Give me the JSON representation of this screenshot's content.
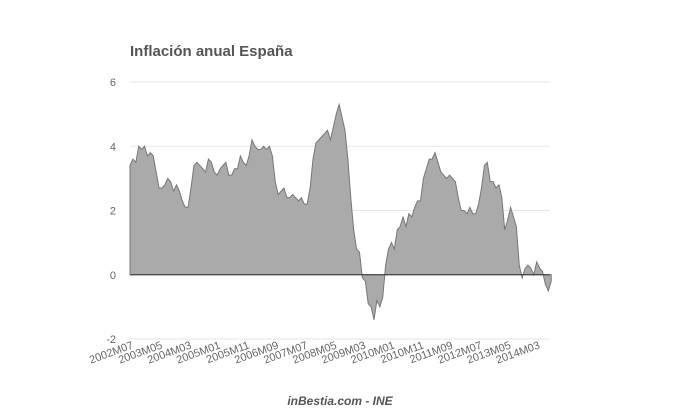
{
  "chart_data": {
    "type": "area",
    "title": "Inflación anual España",
    "source": "inBestia.com - INE",
    "xlabel": "",
    "ylabel": "",
    "ylim": [
      -2,
      6
    ],
    "yticks": [
      "6",
      "4",
      "2",
      "0",
      "-2"
    ],
    "grid": true,
    "legend": "none",
    "x_tick_labels": [
      "2002M07",
      "2003M05",
      "2004M03",
      "2005M01",
      "2005M11",
      "2006M09",
      "2007M07",
      "2008M05",
      "2009M03",
      "2010M01",
      "2010M11",
      "2011M09",
      "2012M07",
      "2013M05",
      "2014M03"
    ],
    "x_start": "2002M07",
    "x": [
      "2002M07",
      "2002M08",
      "2002M09",
      "2002M10",
      "2002M11",
      "2002M12",
      "2003M01",
      "2003M02",
      "2003M03",
      "2003M04",
      "2003M05",
      "2003M06",
      "2003M07",
      "2003M08",
      "2003M09",
      "2003M10",
      "2003M11",
      "2003M12",
      "2004M01",
      "2004M02",
      "2004M03",
      "2004M04",
      "2004M05",
      "2004M06",
      "2004M07",
      "2004M08",
      "2004M09",
      "2004M10",
      "2004M11",
      "2004M12",
      "2005M01",
      "2005M02",
      "2005M03",
      "2005M04",
      "2005M05",
      "2005M06",
      "2005M07",
      "2005M08",
      "2005M09",
      "2005M10",
      "2005M11",
      "2005M12",
      "2006M01",
      "2006M02",
      "2006M03",
      "2006M04",
      "2006M05",
      "2006M06",
      "2006M07",
      "2006M08",
      "2006M09",
      "2006M10",
      "2006M11",
      "2006M12",
      "2007M01",
      "2007M02",
      "2007M03",
      "2007M04",
      "2007M05",
      "2007M06",
      "2007M07",
      "2007M08",
      "2007M09",
      "2007M10",
      "2007M11",
      "2007M12",
      "2008M01",
      "2008M02",
      "2008M03",
      "2008M04",
      "2008M05",
      "2008M06",
      "2008M07",
      "2008M08",
      "2008M09",
      "2008M10",
      "2008M11",
      "2008M12",
      "2009M01",
      "2009M02",
      "2009M03",
      "2009M04",
      "2009M05",
      "2009M06",
      "2009M07",
      "2009M08",
      "2009M09",
      "2009M10",
      "2009M11",
      "2009M12",
      "2010M01",
      "2010M02",
      "2010M03",
      "2010M04",
      "2010M05",
      "2010M06",
      "2010M07",
      "2010M08",
      "2010M09",
      "2010M10",
      "2010M11",
      "2010M12",
      "2011M01",
      "2011M02",
      "2011M03",
      "2011M04",
      "2011M05",
      "2011M06",
      "2011M07",
      "2011M08",
      "2011M09",
      "2011M10",
      "2011M11",
      "2011M12",
      "2012M01",
      "2012M02",
      "2012M03",
      "2012M04",
      "2012M05",
      "2012M06",
      "2012M07",
      "2012M08",
      "2012M09",
      "2012M10",
      "2012M11",
      "2012M12",
      "2013M01",
      "2013M02",
      "2013M03",
      "2013M04",
      "2013M05",
      "2013M06",
      "2013M07",
      "2013M08",
      "2013M09",
      "2013M10",
      "2013M11",
      "2013M12",
      "2014M01",
      "2014M02",
      "2014M03",
      "2014M04",
      "2014M05",
      "2014M06",
      "2014M07",
      "2014M08"
    ],
    "values": [
      3.4,
      3.6,
      3.5,
      4.0,
      3.9,
      4.0,
      3.7,
      3.8,
      3.7,
      3.2,
      2.7,
      2.7,
      2.8,
      3.0,
      2.9,
      2.6,
      2.8,
      2.6,
      2.3,
      2.1,
      2.1,
      2.7,
      3.4,
      3.5,
      3.4,
      3.3,
      3.2,
      3.6,
      3.5,
      3.2,
      3.1,
      3.3,
      3.4,
      3.5,
      3.1,
      3.1,
      3.3,
      3.3,
      3.7,
      3.5,
      3.4,
      3.7,
      4.2,
      4.0,
      3.9,
      3.9,
      4.0,
      3.9,
      4.0,
      3.7,
      2.9,
      2.5,
      2.6,
      2.7,
      2.4,
      2.4,
      2.5,
      2.4,
      2.3,
      2.4,
      2.2,
      2.2,
      2.7,
      3.6,
      4.1,
      4.2,
      4.3,
      4.4,
      4.5,
      4.2,
      4.6,
      5.0,
      5.3,
      4.9,
      4.5,
      3.6,
      2.4,
      1.4,
      0.8,
      0.7,
      -0.1,
      -0.2,
      -0.9,
      -1.0,
      -1.4,
      -0.8,
      -1.0,
      -0.7,
      0.3,
      0.8,
      1.0,
      0.8,
      1.4,
      1.5,
      1.8,
      1.5,
      1.9,
      1.8,
      2.1,
      2.3,
      2.3,
      3.0,
      3.3,
      3.6,
      3.6,
      3.8,
      3.5,
      3.2,
      3.1,
      3.0,
      3.1,
      3.0,
      2.9,
      2.4,
      2.0,
      2.0,
      1.9,
      2.1,
      1.9,
      1.9,
      2.2,
      2.7,
      3.4,
      3.5,
      2.9,
      2.9,
      2.7,
      2.8,
      2.4,
      1.4,
      1.7,
      2.1,
      1.8,
      1.5,
      0.3,
      -0.1,
      0.2,
      0.3,
      0.2,
      0.0,
      0.4,
      0.2,
      0.1,
      -0.3,
      -0.5,
      -0.2
    ]
  }
}
